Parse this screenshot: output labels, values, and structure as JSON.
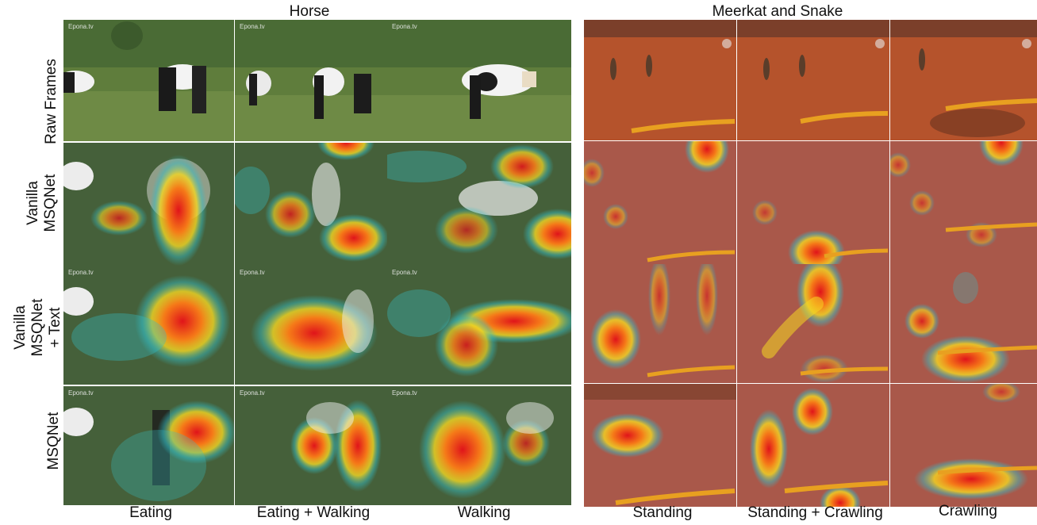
{
  "groups": {
    "horse": "Horse",
    "meerkat": "Meerkat and Snake"
  },
  "rows": {
    "raw": "Raw Frames",
    "vanilla_1": "Vanilla",
    "vanilla_2": "MSQNet",
    "text_1": "Vanilla",
    "text_2": "MSQNet",
    "text_3": "+ Text",
    "msqnet": "MSQNet"
  },
  "columns": {
    "c1": "Eating",
    "c2": "Eating + Walking",
    "c3": "Walking",
    "c4": "Standing",
    "c5": "Standing + Crawling",
    "c6": "Crawling"
  },
  "watermark": "Epona.tv",
  "colors": {
    "grass": "#5d7a3a",
    "desert": "#b5532c",
    "heat_hot": "#e0141a",
    "heat_mid": "#f5d823",
    "heat_cool": "#34c0c8"
  }
}
